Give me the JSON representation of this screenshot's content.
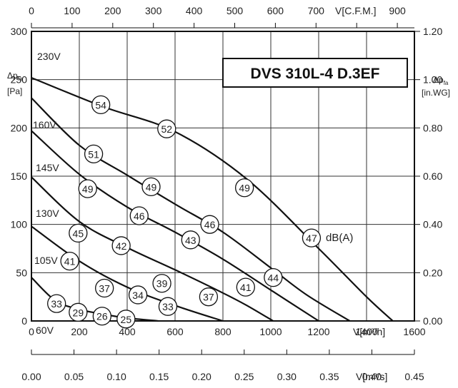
{
  "chart_data": {
    "type": "line",
    "title": "DVS 310L-4 D.3EF",
    "x_m3h": {
      "label": "V[m³/h]",
      "ticks": [
        "0",
        "200",
        "400",
        "600",
        "800",
        "1000",
        "1200",
        "1400",
        "1600"
      ],
      "range": [
        0,
        1600
      ]
    },
    "x_m3s": {
      "label": "V[m³/s]",
      "ticks": [
        "0.00",
        "0.05",
        "0.10",
        "0.15",
        "0.20",
        "0.25",
        "0.30",
        "0.35",
        "0.40",
        "0.45"
      ],
      "range": [
        0,
        0.45
      ]
    },
    "x_cfm": {
      "label": "V[C.F.M.]",
      "ticks": [
        "0",
        "100",
        "200",
        "300",
        "400",
        "500",
        "600",
        "700",
        "900"
      ],
      "range": [
        0,
        942
      ]
    },
    "y_pa": {
      "label_main": "Δp",
      "label_sub": "fa",
      "unit": "[Pa]",
      "ticks": [
        "0",
        "50",
        "100",
        "150",
        "200",
        "250",
        "300"
      ],
      "range": [
        0,
        300
      ]
    },
    "y_inwg": {
      "label_main": "Δp",
      "label_sub": "fa",
      "unit": "[in.WG]",
      "ticks": [
        "0.00",
        "0.20",
        "0.40",
        "0.60",
        "0.80",
        "1.00",
        "1.20"
      ],
      "range": [
        0,
        1.2
      ]
    },
    "grid": true,
    "db_label": "dB(A)",
    "series": [
      {
        "name": "230V",
        "x": [
          0,
          300,
          600,
          900,
          1200,
          1400,
          1510
        ],
        "y": [
          252,
          222,
          196,
          147,
          75,
          25,
          0
        ]
      },
      {
        "name": "160V",
        "x": [
          0,
          200,
          400,
          600,
          800,
          1000,
          1150,
          1330
        ],
        "y": [
          231,
          182,
          151,
          121,
          92,
          55,
          27,
          0
        ]
      },
      {
        "name": "145V",
        "x": [
          0,
          200,
          400,
          600,
          800,
          1000,
          1200
        ],
        "y": [
          197,
          152,
          118,
          92,
          64,
          32,
          0
        ]
      },
      {
        "name": "130V",
        "x": [
          0,
          200,
          400,
          600,
          800,
          900,
          1010
        ],
        "y": [
          149,
          103,
          76,
          53,
          29,
          16,
          0
        ]
      },
      {
        "name": "105V",
        "x": [
          0,
          200,
          400,
          600,
          800
        ],
        "y": [
          98,
          62,
          35,
          16,
          0
        ]
      },
      {
        "name": "60V",
        "x": [
          0,
          100,
          200,
          300,
          400,
          530
        ],
        "y": [
          45,
          21,
          12,
          7,
          3,
          0
        ]
      }
    ],
    "voltage_labels": [
      "230V",
      "160V",
      "145V",
      "130V",
      "105V",
      "60V"
    ],
    "db_markers": [
      {
        "x": 290,
        "y": 224,
        "value": "54"
      },
      {
        "x": 565,
        "y": 199,
        "value": "52"
      },
      {
        "x": 260,
        "y": 173,
        "value": "51"
      },
      {
        "x": 500,
        "y": 139,
        "value": "49"
      },
      {
        "x": 890,
        "y": 138,
        "value": "49"
      },
      {
        "x": 235,
        "y": 137,
        "value": "49"
      },
      {
        "x": 1170,
        "y": 86,
        "value": "47"
      },
      {
        "x": 450,
        "y": 109,
        "value": "46"
      },
      {
        "x": 745,
        "y": 100,
        "value": "46"
      },
      {
        "x": 195,
        "y": 91,
        "value": "45"
      },
      {
        "x": 665,
        "y": 84,
        "value": "43"
      },
      {
        "x": 375,
        "y": 78,
        "value": "42"
      },
      {
        "x": 1010,
        "y": 45,
        "value": "44"
      },
      {
        "x": 160,
        "y": 62,
        "value": "41"
      },
      {
        "x": 895,
        "y": 35,
        "value": "41"
      },
      {
        "x": 305,
        "y": 34,
        "value": "37"
      },
      {
        "x": 545,
        "y": 39,
        "value": "39"
      },
      {
        "x": 740,
        "y": 25,
        "value": "37"
      },
      {
        "x": 445,
        "y": 27,
        "value": "34"
      },
      {
        "x": 570,
        "y": 15,
        "value": "33"
      },
      {
        "x": 105,
        "y": 18,
        "value": "33"
      },
      {
        "x": 195,
        "y": 9,
        "value": "29"
      },
      {
        "x": 295,
        "y": 5,
        "value": "26"
      },
      {
        "x": 395,
        "y": 2,
        "value": "25"
      }
    ]
  }
}
